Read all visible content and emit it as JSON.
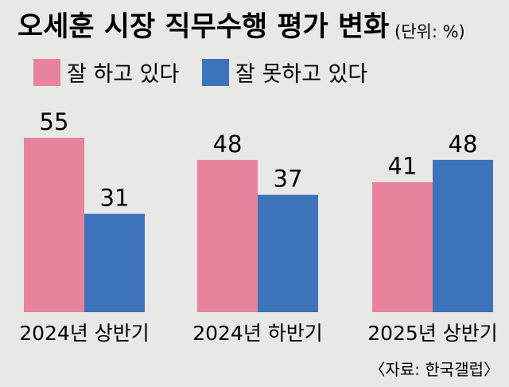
{
  "title": "오세훈 시장 직무수행 평가 변화",
  "unit": "(단위: %)",
  "source": "〈자료: 한국갤럽〉",
  "colors": {
    "background": "#e8e8e6",
    "positive": "#e8839e",
    "negative": "#3d73b8",
    "text": "#1a1a1a"
  },
  "chart_data": {
    "type": "bar",
    "title": "오세훈 시장 직무수행 평가 변화",
    "categories": [
      "2024년 상반기",
      "2024년 하반기",
      "2025년 상반기"
    ],
    "series": [
      {
        "name": "잘 하고 있다",
        "values": [
          55,
          48,
          41
        ]
      },
      {
        "name": "잘 못하고 있다",
        "values": [
          31,
          37,
          48
        ]
      }
    ],
    "ylim": [
      0,
      55
    ],
    "grid": false,
    "legend": "top-left"
  }
}
